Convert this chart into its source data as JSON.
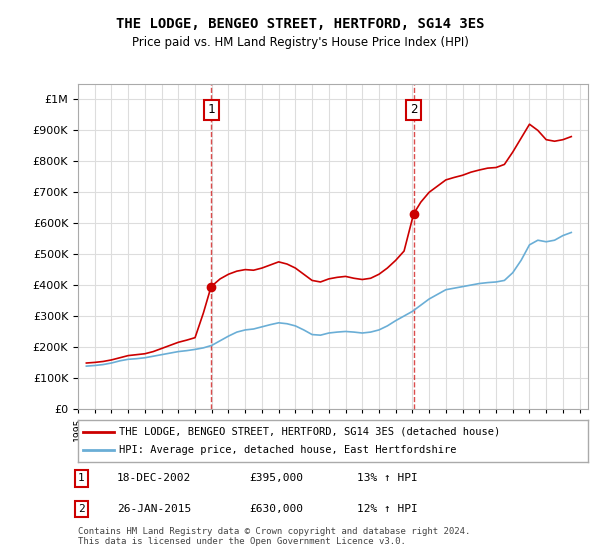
{
  "title": "THE LODGE, BENGEO STREET, HERTFORD, SG14 3ES",
  "subtitle": "Price paid vs. HM Land Registry's House Price Index (HPI)",
  "ylabel_ticks": [
    "£0",
    "£100K",
    "£200K",
    "£300K",
    "£400K",
    "£500K",
    "£600K",
    "£700K",
    "£800K",
    "£900K",
    "£1M"
  ],
  "ytick_values": [
    0,
    100000,
    200000,
    300000,
    400000,
    500000,
    600000,
    700000,
    800000,
    900000,
    1000000
  ],
  "ylim": [
    0,
    1050000
  ],
  "xlim_start": 1995.0,
  "xlim_end": 2025.5,
  "xtick_years": [
    1995,
    1996,
    1997,
    1998,
    1999,
    2000,
    2001,
    2002,
    2003,
    2004,
    2005,
    2006,
    2007,
    2008,
    2009,
    2010,
    2011,
    2012,
    2013,
    2014,
    2015,
    2016,
    2017,
    2018,
    2019,
    2020,
    2021,
    2022,
    2023,
    2024,
    2025
  ],
  "hpi_color": "#6aaed6",
  "price_color": "#cc0000",
  "dashed_line_color": "#cc0000",
  "marker_color": "#cc0000",
  "purchase1_x": 2002.96,
  "purchase1_y": 395000,
  "purchase2_x": 2015.07,
  "purchase2_y": 630000,
  "legend_box_color": "#ffffff",
  "legend_border_color": "#aaaaaa",
  "grid_color": "#dddddd",
  "background_color": "#ffffff",
  "legend_line1": "THE LODGE, BENGEO STREET, HERTFORD, SG14 3ES (detached house)",
  "legend_line2": "HPI: Average price, detached house, East Hertfordshire",
  "annotation1_label": "1",
  "annotation2_label": "2",
  "table_row1": "1    18-DEC-2002    £395,000    13% ↑ HPI",
  "table_row2": "2    26-JAN-2015    £630,000    12% ↑ HPI",
  "footer": "Contains HM Land Registry data © Crown copyright and database right 2024.\nThis data is licensed under the Open Government Licence v3.0.",
  "hpi_data_x": [
    1995.5,
    1996.0,
    1996.5,
    1997.0,
    1997.5,
    1998.0,
    1998.5,
    1999.0,
    1999.5,
    2000.0,
    2000.5,
    2001.0,
    2001.5,
    2002.0,
    2002.5,
    2003.0,
    2003.5,
    2004.0,
    2004.5,
    2005.0,
    2005.5,
    2006.0,
    2006.5,
    2007.0,
    2007.5,
    2008.0,
    2008.5,
    2009.0,
    2009.5,
    2010.0,
    2010.5,
    2011.0,
    2011.5,
    2012.0,
    2012.5,
    2013.0,
    2013.5,
    2014.0,
    2014.5,
    2015.0,
    2015.5,
    2016.0,
    2016.5,
    2017.0,
    2017.5,
    2018.0,
    2018.5,
    2019.0,
    2019.5,
    2020.0,
    2020.5,
    2021.0,
    2021.5,
    2022.0,
    2022.5,
    2023.0,
    2023.5,
    2024.0,
    2024.5
  ],
  "hpi_data_y": [
    138000,
    140000,
    143000,
    148000,
    155000,
    160000,
    162000,
    165000,
    170000,
    175000,
    180000,
    185000,
    188000,
    192000,
    197000,
    205000,
    220000,
    235000,
    248000,
    255000,
    258000,
    265000,
    272000,
    278000,
    275000,
    268000,
    255000,
    240000,
    238000,
    245000,
    248000,
    250000,
    248000,
    245000,
    248000,
    255000,
    268000,
    285000,
    300000,
    315000,
    335000,
    355000,
    370000,
    385000,
    390000,
    395000,
    400000,
    405000,
    408000,
    410000,
    415000,
    440000,
    480000,
    530000,
    545000,
    540000,
    545000,
    560000,
    570000
  ],
  "price_data_x": [
    1995.5,
    1996.0,
    1996.5,
    1997.0,
    1997.5,
    1998.0,
    1998.5,
    1999.0,
    1999.5,
    2000.0,
    2000.5,
    2001.0,
    2001.5,
    2002.0,
    2002.5,
    2002.96,
    2003.5,
    2004.0,
    2004.5,
    2005.0,
    2005.5,
    2006.0,
    2006.5,
    2007.0,
    2007.5,
    2008.0,
    2008.5,
    2009.0,
    2009.5,
    2010.0,
    2010.5,
    2011.0,
    2011.5,
    2012.0,
    2012.5,
    2013.0,
    2013.5,
    2014.0,
    2014.5,
    2015.07,
    2015.5,
    2016.0,
    2016.5,
    2017.0,
    2017.5,
    2018.0,
    2018.5,
    2019.0,
    2019.5,
    2020.0,
    2020.5,
    2021.0,
    2021.5,
    2022.0,
    2022.5,
    2023.0,
    2023.5,
    2024.0,
    2024.5
  ],
  "price_data_y": [
    148000,
    150000,
    153000,
    158000,
    165000,
    172000,
    175000,
    178000,
    185000,
    195000,
    205000,
    215000,
    222000,
    230000,
    310000,
    395000,
    420000,
    435000,
    445000,
    450000,
    448000,
    455000,
    465000,
    475000,
    468000,
    455000,
    435000,
    415000,
    410000,
    420000,
    425000,
    428000,
    422000,
    418000,
    422000,
    435000,
    455000,
    480000,
    510000,
    630000,
    668000,
    700000,
    720000,
    740000,
    748000,
    755000,
    765000,
    772000,
    778000,
    780000,
    790000,
    830000,
    875000,
    920000,
    900000,
    870000,
    865000,
    870000,
    880000
  ]
}
